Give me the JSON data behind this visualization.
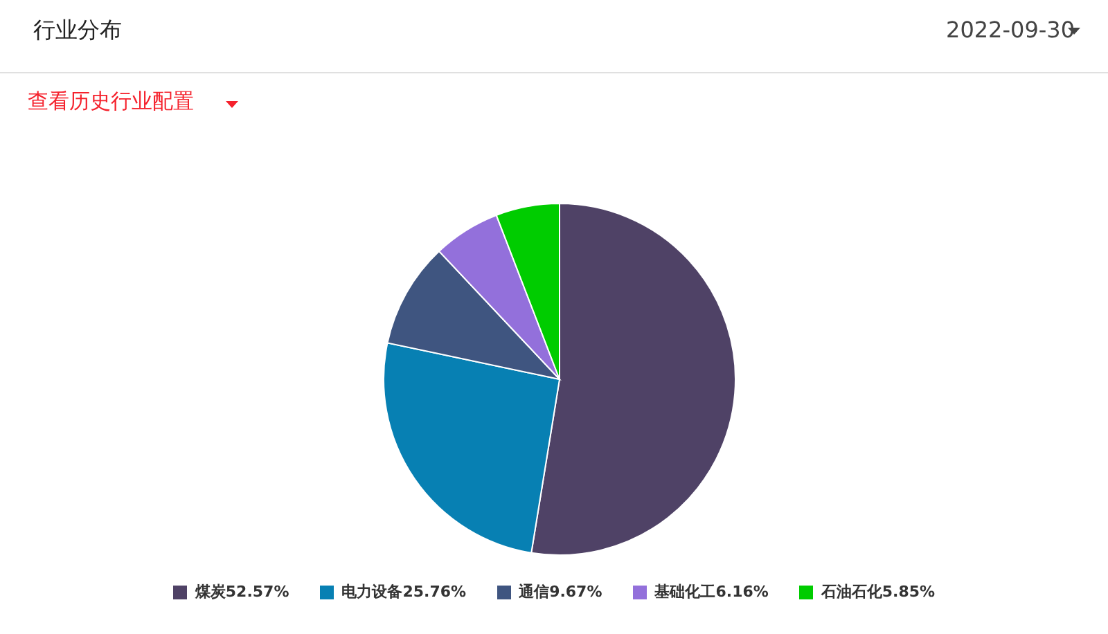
{
  "chart_data": {
    "type": "pie",
    "title": "行业分布",
    "annotations": [
      "2022-09-30",
      "查看历史行业配置"
    ],
    "categories": [
      "煤炭",
      "电力设备",
      "通信",
      "基础化工",
      "石油石化"
    ],
    "values": [
      52.57,
      25.76,
      9.67,
      6.16,
      5.85
    ],
    "value_labels": [
      "52.57%",
      "25.76%",
      "9.67%",
      "6.16%",
      "5.85%"
    ],
    "colors": [
      "#4f4266",
      "#0780b3",
      "#3f5580",
      "#9370db",
      "#00cc00"
    ],
    "legend": "bottom"
  }
}
